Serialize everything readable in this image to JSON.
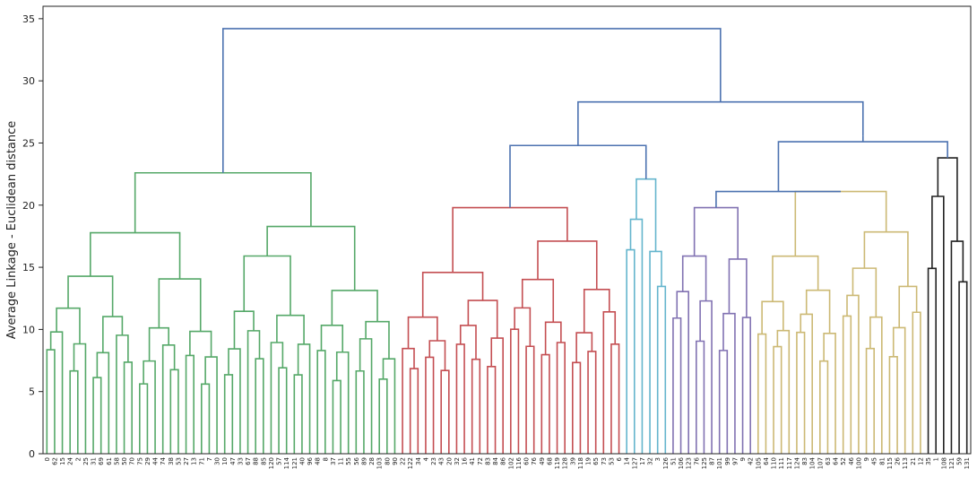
{
  "chart_data": {
    "type": "dendrogram",
    "title": "",
    "xlabel": "",
    "ylabel": "Average Linkage - Euclidean distance",
    "ylim": [
      0,
      36
    ],
    "yticks": [
      0,
      5,
      10,
      15,
      20,
      25,
      30,
      35
    ],
    "grid": false,
    "legend": "none",
    "leaf_labels": [
      "0",
      "62",
      "15",
      "24",
      "2",
      "25",
      "31",
      "69",
      "61",
      "58",
      "50",
      "70",
      "75",
      "29",
      "44",
      "74",
      "38",
      "53",
      "27",
      "13",
      "71",
      "7",
      "30",
      "10",
      "47",
      "33",
      "67",
      "88",
      "85",
      "120",
      "57",
      "114",
      "121",
      "40",
      "96",
      "48",
      "8",
      "37",
      "11",
      "55",
      "56",
      "89",
      "28",
      "103",
      "80",
      "90",
      "22",
      "122",
      "34",
      "4",
      "23",
      "43",
      "20",
      "32",
      "16",
      "41",
      "72",
      "83",
      "84",
      "86",
      "102",
      "116",
      "60",
      "76",
      "49",
      "68",
      "119",
      "128",
      "39",
      "118",
      "19",
      "65",
      "73",
      "53",
      "6",
      "14",
      "127",
      "17",
      "32",
      "3",
      "126",
      "51",
      "106",
      "123",
      "76",
      "125",
      "87",
      "101",
      "99",
      "97",
      "9",
      "42",
      "105",
      "64",
      "110",
      "111",
      "117",
      "124",
      "83",
      "104",
      "107",
      "63",
      "64",
      "52",
      "46",
      "100",
      "9",
      "45",
      "81",
      "115",
      "26",
      "113",
      "21",
      "12",
      "35",
      "1",
      "108",
      "121",
      "59",
      "131"
    ],
    "clusters": [
      {
        "name": "green",
        "color": "#55a868",
        "leaf_range": [
          0,
          45
        ],
        "height": 22.6
      },
      {
        "name": "red",
        "color": "#c44e52",
        "leaf_range": [
          46,
          74
        ],
        "height": 19.8
      },
      {
        "name": "cyan",
        "color": "#64b5cd",
        "leaf_range": [
          75,
          80
        ],
        "height": 22.1
      },
      {
        "name": "purple",
        "color": "#8172b2",
        "leaf_range": [
          81,
          91
        ],
        "height": 19.8
      },
      {
        "name": "khaki",
        "color": "#ccb974",
        "leaf_range": [
          92,
          113
        ],
        "height": 21.1
      },
      {
        "name": "black",
        "color": "#222222",
        "leaf_range": [
          114,
          119
        ],
        "height": 23.8
      }
    ],
    "top_merges": [
      {
        "clusters": [
          "red",
          "cyan"
        ],
        "height": 24.8,
        "color": "#4c72b0"
      },
      {
        "clusters": [
          "purple",
          "khaki"
        ],
        "height": 21.1,
        "color": "#4c72b0"
      },
      {
        "clusters": [
          "purple+khaki",
          "black"
        ],
        "height": 25.1,
        "color": "#4c72b0"
      },
      {
        "clusters": [
          "purple+khaki",
          "black"
        ],
        "height": 25.6,
        "color": "#4c72b0"
      },
      {
        "clusters": [
          "red+cyan",
          "purple+khaki+black"
        ],
        "height": 28.3,
        "color": "#4c72b0"
      },
      {
        "clusters": [
          "green",
          "rest"
        ],
        "height": 34.2,
        "color": "#4c72b0"
      }
    ]
  }
}
